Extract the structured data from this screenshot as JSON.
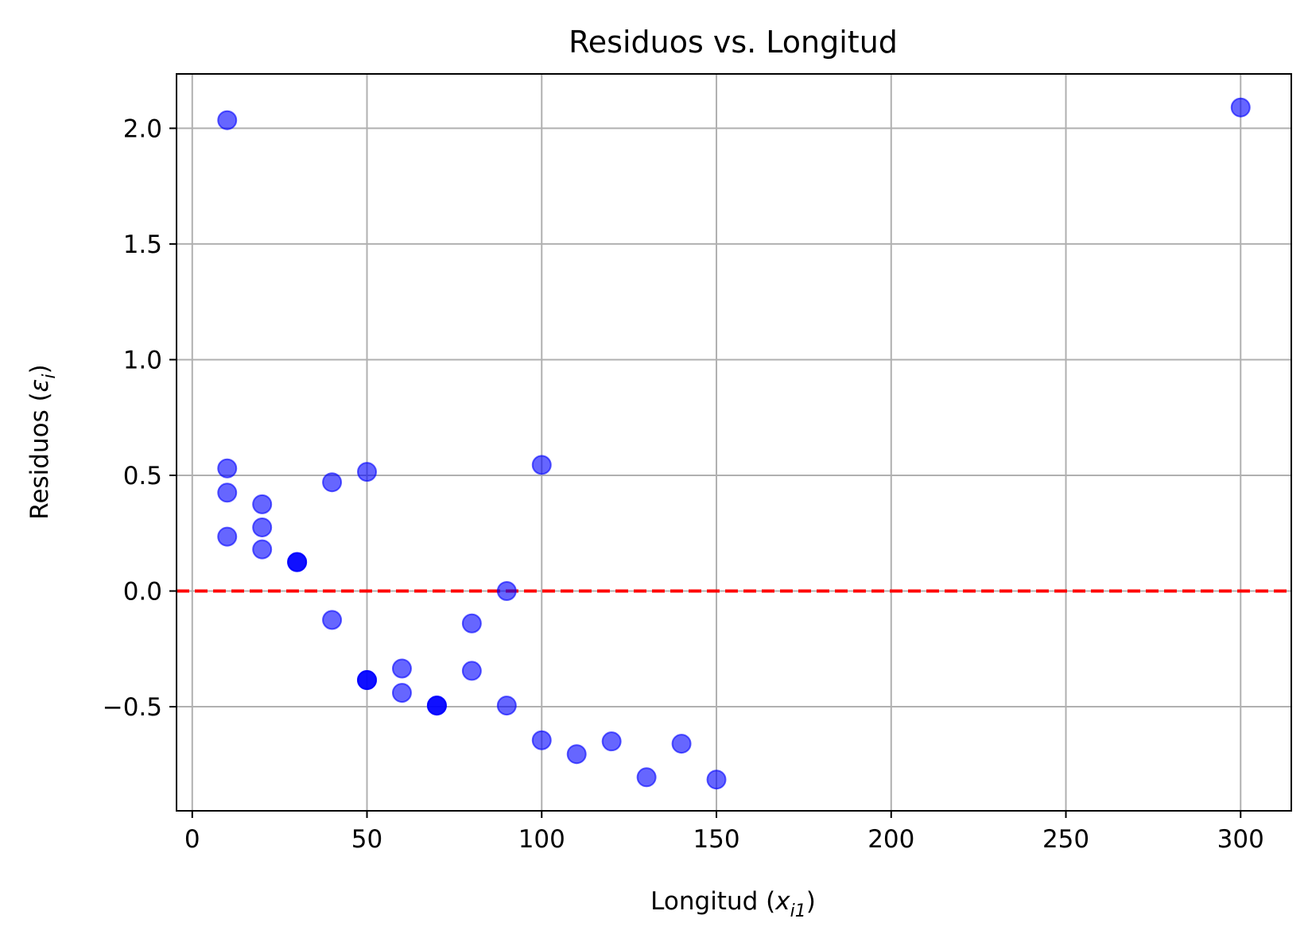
{
  "chart_data": {
    "type": "scatter",
    "title": "Residuos vs. Longitud",
    "xlabel": {
      "prefix": "Longitud (",
      "var": "x",
      "sub": "i1",
      "suffix": ")"
    },
    "ylabel": {
      "prefix": "Residuos (",
      "var": "ε",
      "sub": "i",
      "suffix": ")"
    },
    "xlim": [
      -4.5,
      314.5
    ],
    "ylim": [
      -0.95,
      2.235
    ],
    "xticks": [
      0,
      50,
      100,
      150,
      200,
      250,
      300
    ],
    "xtick_labels": [
      "0",
      "50",
      "100",
      "150",
      "200",
      "250",
      "300"
    ],
    "yticks": [
      -0.5,
      0.0,
      0.5,
      1.0,
      1.5,
      2.0
    ],
    "ytick_labels": [
      "−0.5",
      "0.0",
      "0.5",
      "1.0",
      "1.5",
      "2.0"
    ],
    "grid": true,
    "reference_line": {
      "y": 0.0,
      "color": "#ff0000",
      "style": "dashed"
    },
    "series": [
      {
        "color": "#0000ff",
        "alpha": 0.6,
        "points": [
          {
            "x": 10,
            "y": 2.035
          },
          {
            "x": 10,
            "y": 0.53
          },
          {
            "x": 10,
            "y": 0.425
          },
          {
            "x": 10,
            "y": 0.235
          },
          {
            "x": 20,
            "y": 0.375
          },
          {
            "x": 20,
            "y": 0.275
          },
          {
            "x": 20,
            "y": 0.18
          },
          {
            "x": 30,
            "y": 0.125
          },
          {
            "x": 30,
            "y": 0.125
          },
          {
            "x": 30,
            "y": 0.125
          },
          {
            "x": 40,
            "y": 0.47
          },
          {
            "x": 40,
            "y": -0.125
          },
          {
            "x": 50,
            "y": 0.515
          },
          {
            "x": 50,
            "y": -0.385
          },
          {
            "x": 50,
            "y": -0.385
          },
          {
            "x": 50,
            "y": -0.385
          },
          {
            "x": 60,
            "y": -0.335
          },
          {
            "x": 60,
            "y": -0.44
          },
          {
            "x": 70,
            "y": -0.495
          },
          {
            "x": 70,
            "y": -0.495
          },
          {
            "x": 70,
            "y": -0.495
          },
          {
            "x": 80,
            "y": -0.14
          },
          {
            "x": 80,
            "y": -0.345
          },
          {
            "x": 90,
            "y": 0.0
          },
          {
            "x": 90,
            "y": -0.495
          },
          {
            "x": 100,
            "y": 0.545
          },
          {
            "x": 100,
            "y": -0.645
          },
          {
            "x": 110,
            "y": -0.705
          },
          {
            "x": 120,
            "y": -0.65
          },
          {
            "x": 130,
            "y": -0.805
          },
          {
            "x": 140,
            "y": -0.66
          },
          {
            "x": 150,
            "y": -0.815
          },
          {
            "x": 300,
            "y": 2.09
          }
        ]
      }
    ]
  }
}
